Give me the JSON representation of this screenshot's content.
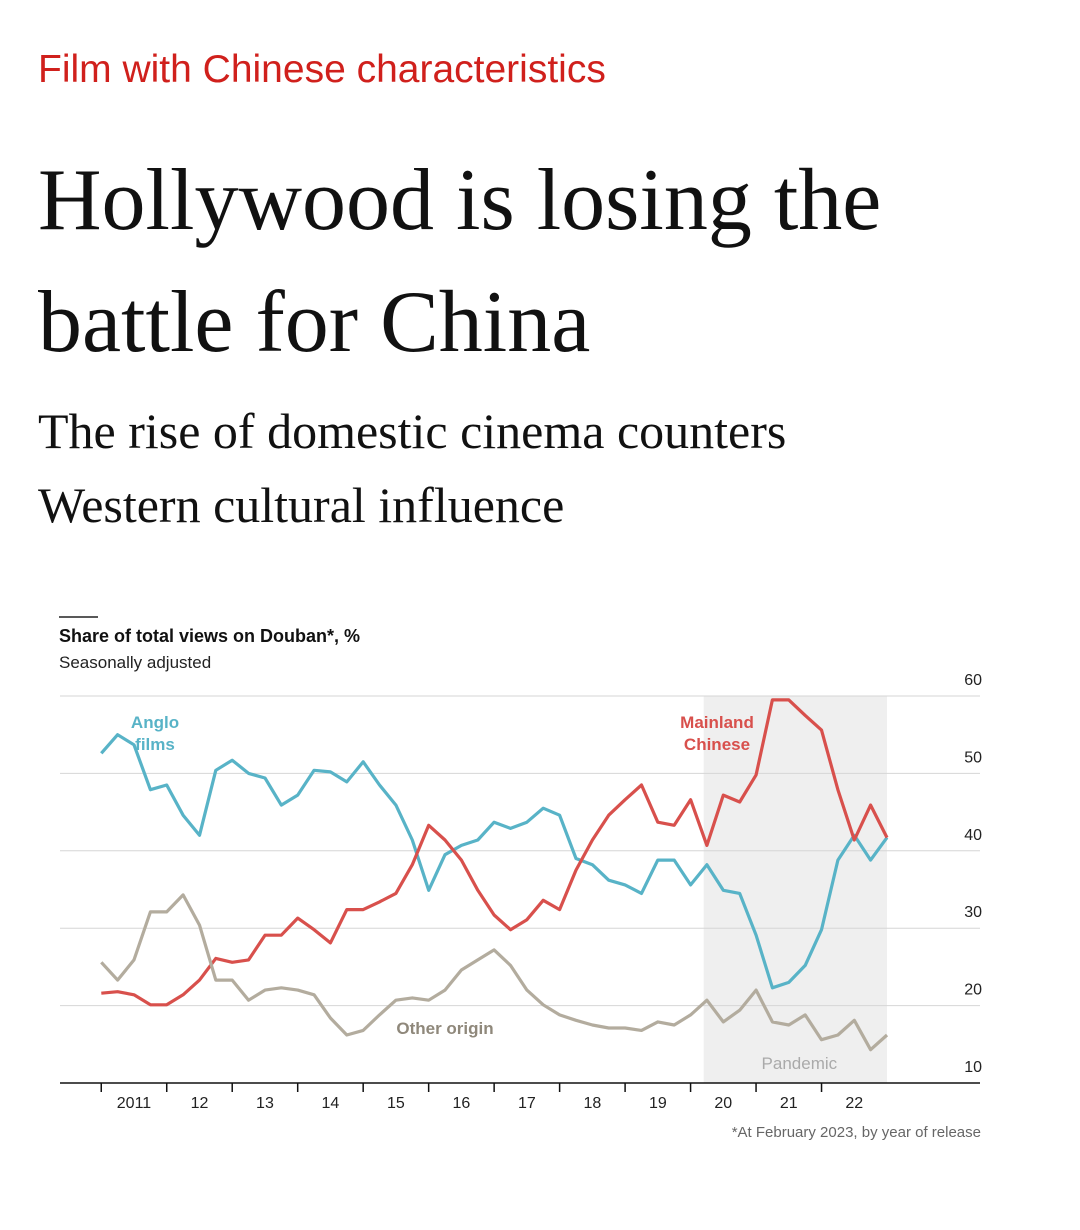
{
  "header": {
    "kicker": "Film with Chinese characteristics",
    "title": "Hollywood is losing the battle for China",
    "subtitle": "The rise of domestic cinema counters Western cultural influence"
  },
  "chart_data": {
    "type": "line",
    "title": "Share of total views on Douban*, %",
    "subtitle": "Seasonally adjusted",
    "footnote": "*At February 2023, by year of release",
    "annotation": {
      "text": "Pandemic",
      "span": [
        2020.2,
        2023.0
      ],
      "color": "#efefef"
    },
    "x": [
      2011.0,
      2011.25,
      2011.5,
      2011.75,
      2012.0,
      2012.25,
      2012.5,
      2012.75,
      2013.0,
      2013.25,
      2013.5,
      2013.75,
      2014.0,
      2014.25,
      2014.5,
      2014.75,
      2015.0,
      2015.25,
      2015.5,
      2015.75,
      2016.0,
      2016.25,
      2016.5,
      2016.75,
      2017.0,
      2017.25,
      2017.5,
      2017.75,
      2018.0,
      2018.25,
      2018.5,
      2018.75,
      2019.0,
      2019.25,
      2019.5,
      2019.75,
      2020.0,
      2020.25,
      2020.5,
      2020.75,
      2021.0,
      2021.25,
      2021.5,
      2021.75,
      2022.0,
      2022.25,
      2022.5,
      2022.75,
      2023.0
    ],
    "series": [
      {
        "name": "Anglo films",
        "color": "#58b3c7",
        "values": [
          52.6,
          55,
          53.7,
          47.9,
          48.5,
          44.6,
          42,
          50.4,
          51.7,
          50,
          49.4,
          45.9,
          47.2,
          50.4,
          50.2,
          48.9,
          51.5,
          48.5,
          45.9,
          41.4,
          34.9,
          39.5,
          40.7,
          41.4,
          43.7,
          42.9,
          43.7,
          45.5,
          44.6,
          39,
          38.2,
          36.2,
          35.6,
          34.5,
          38.8,
          38.8,
          35.6,
          38.2,
          34.9,
          34.5,
          29.1,
          22.3,
          23,
          25.2,
          29.8,
          38.8,
          42,
          38.8,
          41.7
        ]
      },
      {
        "name": "Mainland Chinese",
        "color": "#d8504c",
        "values": [
          21.6,
          21.8,
          21.4,
          20.1,
          20.1,
          21.4,
          23.3,
          26.1,
          25.6,
          25.9,
          29.1,
          29.1,
          31.3,
          29.8,
          28.1,
          32.4,
          32.4,
          33.4,
          34.5,
          38.2,
          43.3,
          41.4,
          38.8,
          34.9,
          31.7,
          29.8,
          31.1,
          33.6,
          32.4,
          37.5,
          41.4,
          44.6,
          46.6,
          48.5,
          43.7,
          43.3,
          46.6,
          40.7,
          47.2,
          46.3,
          49.8,
          59.5,
          59.5,
          57.5,
          55.6,
          47.9,
          41.4,
          45.9,
          41.7
        ]
      },
      {
        "name": "Other origin",
        "color": "#b3ac9e",
        "values": [
          25.6,
          23.3,
          25.9,
          32.1,
          32.1,
          34.3,
          30.4,
          23.3,
          23.3,
          20.7,
          22,
          22.3,
          22,
          21.4,
          18.4,
          16.2,
          16.8,
          18.8,
          20.7,
          21,
          20.7,
          22,
          24.6,
          25.9,
          27.2,
          25.2,
          22,
          20.1,
          18.8,
          18.1,
          17.5,
          17.1,
          17.1,
          16.8,
          17.9,
          17.5,
          18.8,
          20.7,
          17.9,
          19.4,
          22,
          17.9,
          17.5,
          18.8,
          15.6,
          16.2,
          18.1,
          14.3,
          16.2
        ]
      }
    ],
    "xlim": [
      2010.37,
      2024.42
    ],
    "xticks": [
      {
        "value": 2011,
        "label": "2011"
      },
      {
        "value": 2012,
        "label": "12"
      },
      {
        "value": 2013,
        "label": "13"
      },
      {
        "value": 2014,
        "label": "14"
      },
      {
        "value": 2015,
        "label": "15"
      },
      {
        "value": 2016,
        "label": "16"
      },
      {
        "value": 2017,
        "label": "17"
      },
      {
        "value": 2018,
        "label": "18"
      },
      {
        "value": 2019,
        "label": "19"
      },
      {
        "value": 2020,
        "label": "20"
      },
      {
        "value": 2021,
        "label": "21"
      },
      {
        "value": 2022,
        "label": "22"
      }
    ],
    "ylim": [
      10,
      60
    ],
    "yticks": [
      10,
      20,
      30,
      40,
      50,
      60
    ],
    "grid": true
  }
}
